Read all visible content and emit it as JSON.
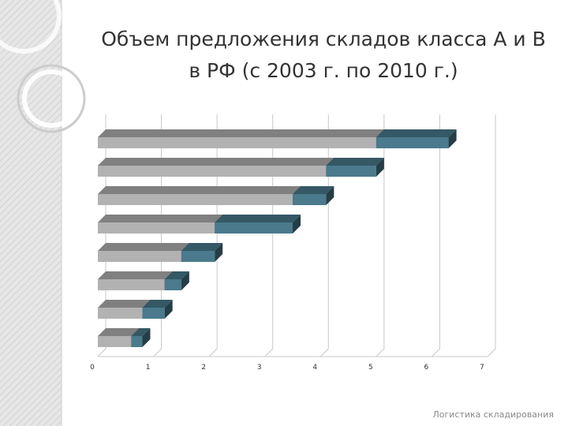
{
  "title": "Объем предложения складов класса А и В в РФ (с 2003 г. по 2010 г.)",
  "footer": "Логистика складирования",
  "chart_data": {
    "type": "bar",
    "orientation": "horizontal",
    "stacked": true,
    "three_d": true,
    "categories": [
      null,
      null,
      null,
      null,
      null,
      null,
      null,
      null
    ],
    "series": [
      {
        "color": "#b2b2b2",
        "values": [
          0.6,
          0.8,
          1.2,
          1.5,
          2.1,
          3.5,
          4.1,
          5.0
        ]
      },
      {
        "color": "#4a7a8c",
        "values": [
          0.2,
          0.4,
          0.3,
          0.6,
          1.4,
          0.6,
          0.9,
          1.3
        ]
      }
    ],
    "xlim": [
      0,
      7
    ],
    "xticks": [
      0,
      1,
      2,
      3,
      4,
      5,
      6,
      7
    ],
    "grid": true
  }
}
